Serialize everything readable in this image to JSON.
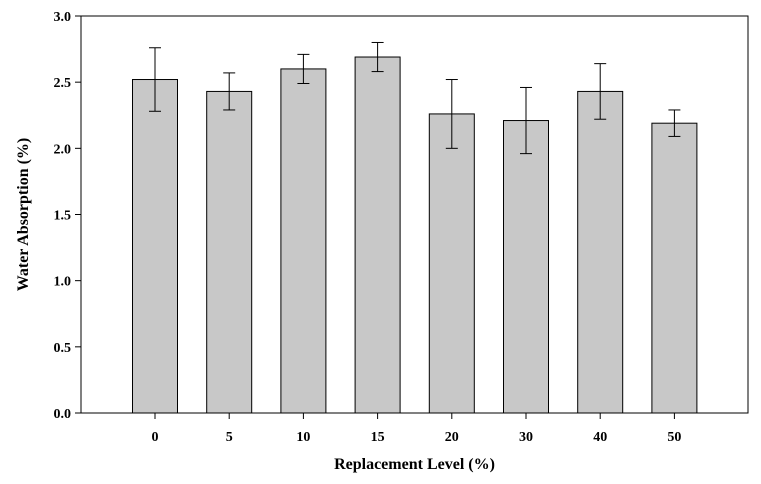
{
  "chart_data": {
    "type": "bar",
    "title": "",
    "xlabel": "Replacement Level (%)",
    "ylabel": "Water Absorption (%)",
    "categories": [
      "0",
      "5",
      "10",
      "15",
      "20",
      "30",
      "40",
      "50"
    ],
    "values": [
      2.52,
      2.43,
      2.6,
      2.69,
      2.26,
      2.21,
      2.43,
      2.19
    ],
    "errors": [
      0.24,
      0.14,
      0.11,
      0.11,
      0.26,
      0.25,
      0.21,
      0.1
    ],
    "ylim": [
      0,
      3.0
    ],
    "yticks": [
      "0.0",
      "0.5",
      "1.0",
      "1.5",
      "2.0",
      "2.5",
      "3.0"
    ],
    "grid": false,
    "legend": "none",
    "bar_color": "#c8c8c8",
    "edge_color": "#000000"
  }
}
